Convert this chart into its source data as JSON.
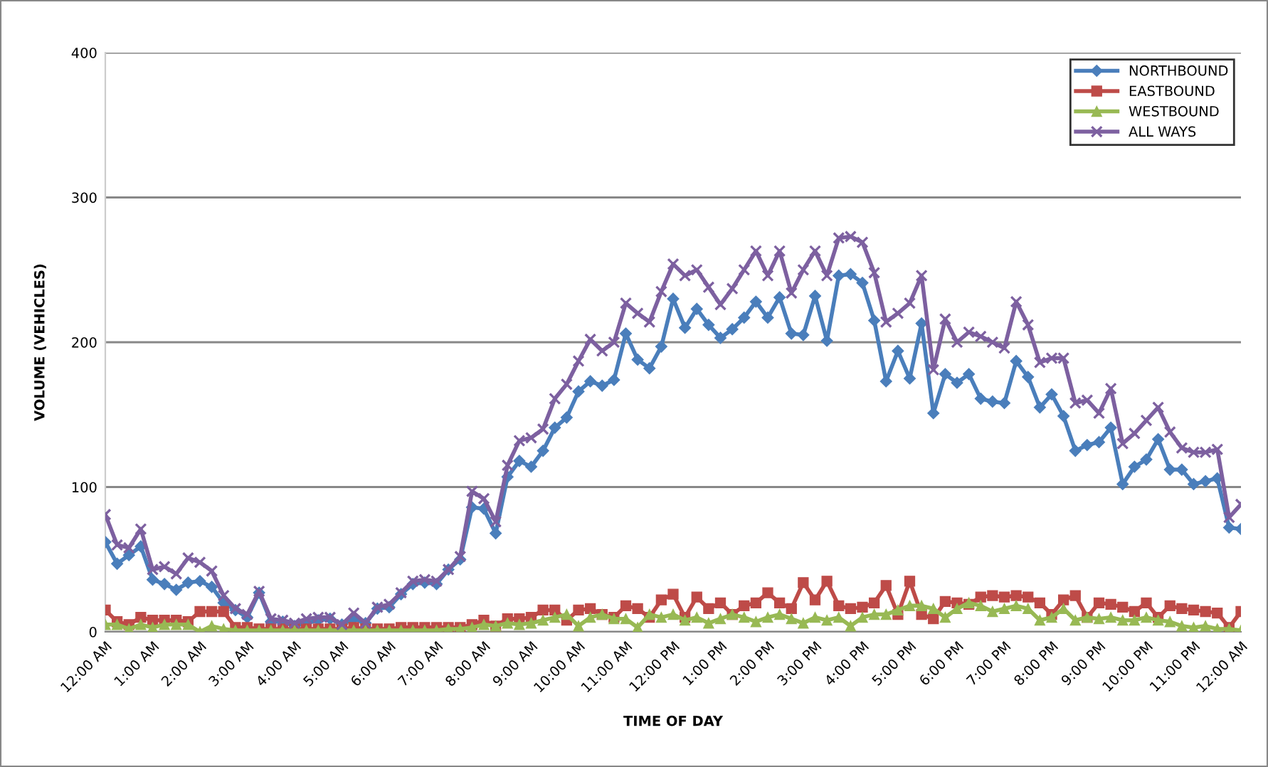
{
  "chart_data": {
    "type": "line",
    "xlabel": "TIME OF DAY",
    "ylabel": "VOLUME (VEHICLES)",
    "x": [
      0,
      0.25,
      0.5,
      0.75,
      1,
      1.25,
      1.5,
      1.75,
      2,
      2.25,
      2.5,
      2.75,
      3,
      3.25,
      3.5,
      3.75,
      4,
      4.25,
      4.5,
      4.75,
      5,
      5.25,
      5.5,
      5.75,
      6,
      6.25,
      6.5,
      6.75,
      7,
      7.25,
      7.5,
      7.75,
      8,
      8.25,
      8.5,
      8.75,
      9,
      9.25,
      9.5,
      9.75,
      10,
      10.25,
      10.5,
      10.75,
      11,
      11.25,
      11.5,
      11.75,
      12,
      12.25,
      12.5,
      12.75,
      13,
      13.25,
      13.5,
      13.75,
      14,
      14.25,
      14.5,
      14.75,
      15,
      15.25,
      15.5,
      15.75,
      16,
      16.25,
      16.5,
      16.75,
      17,
      17.25,
      17.5,
      17.75,
      18,
      18.25,
      18.5,
      18.75,
      19,
      19.25,
      19.5,
      19.75,
      20,
      20.25,
      20.5,
      20.75,
      21,
      21.25,
      21.5,
      21.75,
      22,
      22.25,
      22.5,
      22.75,
      23,
      23.25,
      23.5,
      23.75,
      24
    ],
    "series": [
      {
        "name": "NORTHBOUND",
        "color": "#4a7ebb",
        "marker": "diamond",
        "values": [
          62,
          47,
          53,
          59,
          36,
          33,
          29,
          34,
          35,
          31,
          20,
          15,
          10,
          27,
          7,
          7,
          4,
          6,
          8,
          9,
          5,
          9,
          6,
          16,
          17,
          26,
          33,
          34,
          33,
          43,
          50,
          86,
          85,
          68,
          107,
          118,
          114,
          125,
          141,
          148,
          166,
          173,
          170,
          174,
          206,
          188,
          182,
          197,
          230,
          210,
          223,
          212,
          203,
          209,
          217,
          228,
          217,
          231,
          206,
          205,
          232,
          201,
          246,
          247,
          241,
          215,
          173,
          194,
          175,
          213,
          151,
          178,
          172,
          178,
          161,
          159,
          158,
          187,
          176,
          155,
          164,
          149,
          125,
          129,
          131,
          141,
          102,
          114,
          119,
          133,
          112,
          112,
          102,
          104,
          106,
          72,
          71
        ]
      },
      {
        "name": "EASTBOUND",
        "color": "#be4b48",
        "marker": "square",
        "values": [
          15,
          7,
          5,
          10,
          8,
          8,
          8,
          7,
          14,
          14,
          14,
          3,
          3,
          2,
          2,
          2,
          2,
          2,
          2,
          2,
          2,
          3,
          2,
          2,
          2,
          3,
          3,
          3,
          3,
          3,
          3,
          5,
          8,
          4,
          9,
          9,
          10,
          15,
          15,
          8,
          15,
          16,
          12,
          10,
          18,
          16,
          10,
          22,
          26,
          10,
          24,
          16,
          20,
          12,
          18,
          20,
          27,
          20,
          16,
          34,
          22,
          35,
          18,
          16,
          17,
          20,
          32,
          12,
          35,
          12,
          9,
          21,
          20,
          19,
          24,
          25,
          24,
          25,
          24,
          20,
          12,
          22,
          25,
          10,
          20,
          19,
          17,
          14,
          20,
          10,
          18,
          16,
          15,
          14,
          13,
          3,
          14
        ]
      },
      {
        "name": "WESTBOUND",
        "color": "#98b954",
        "marker": "triangle",
        "values": [
          5,
          5,
          2,
          5,
          3,
          5,
          5,
          5,
          0,
          4,
          2,
          1,
          1,
          1,
          1,
          1,
          1,
          1,
          1,
          1,
          1,
          1,
          1,
          1,
          1,
          1,
          1,
          1,
          1,
          2,
          2,
          3,
          5,
          4,
          6,
          5,
          6,
          8,
          10,
          12,
          4,
          10,
          12,
          9,
          9,
          3,
          12,
          10,
          12,
          8,
          10,
          6,
          9,
          12,
          10,
          7,
          10,
          12,
          9,
          6,
          10,
          8,
          10,
          4,
          10,
          12,
          12,
          15,
          18,
          18,
          16,
          10,
          16,
          20,
          18,
          14,
          16,
          18,
          16,
          8,
          10,
          16,
          8,
          10,
          9,
          10,
          8,
          8,
          10,
          8,
          7,
          4,
          3,
          4,
          2,
          2,
          1
        ]
      },
      {
        "name": "ALL WAYS",
        "color": "#7d60a0",
        "marker": "cross",
        "values": [
          81,
          60,
          58,
          71,
          43,
          45,
          40,
          51,
          48,
          42,
          25,
          16,
          12,
          28,
          9,
          8,
          6,
          9,
          10,
          10,
          5,
          13,
          6,
          17,
          19,
          27,
          35,
          36,
          35,
          43,
          52,
          97,
          92,
          76,
          115,
          132,
          134,
          140,
          161,
          171,
          187,
          202,
          194,
          200,
          227,
          220,
          214,
          235,
          254,
          246,
          250,
          238,
          226,
          237,
          250,
          263,
          246,
          263,
          234,
          250,
          263,
          246,
          272,
          273,
          269,
          248,
          214,
          220,
          227,
          246,
          181,
          216,
          200,
          207,
          204,
          200,
          196,
          228,
          212,
          186,
          189,
          189,
          158,
          160,
          151,
          168,
          130,
          137,
          146,
          155,
          138,
          127,
          124,
          124,
          126,
          79,
          88
        ]
      }
    ],
    "xlim": [
      0,
      24
    ],
    "xticks": [
      {
        "value": 0,
        "label": "12:00 AM"
      },
      {
        "value": 1,
        "label": "1:00 AM"
      },
      {
        "value": 2,
        "label": "2:00 AM"
      },
      {
        "value": 3,
        "label": "3:00 AM"
      },
      {
        "value": 4,
        "label": "4:00 AM"
      },
      {
        "value": 5,
        "label": "5:00 AM"
      },
      {
        "value": 6,
        "label": "6:00 AM"
      },
      {
        "value": 7,
        "label": "7:00 AM"
      },
      {
        "value": 8,
        "label": "8:00 AM"
      },
      {
        "value": 9,
        "label": "9:00 AM"
      },
      {
        "value": 10,
        "label": "10:00 AM"
      },
      {
        "value": 11,
        "label": "11:00 AM"
      },
      {
        "value": 12,
        "label": "12:00 PM"
      },
      {
        "value": 13,
        "label": "1:00 PM"
      },
      {
        "value": 14,
        "label": "2:00 PM"
      },
      {
        "value": 15,
        "label": "3:00 PM"
      },
      {
        "value": 16,
        "label": "4:00 PM"
      },
      {
        "value": 17,
        "label": "5:00 PM"
      },
      {
        "value": 18,
        "label": "6:00 PM"
      },
      {
        "value": 19,
        "label": "7:00 PM"
      },
      {
        "value": 20,
        "label": "8:00 PM"
      },
      {
        "value": 21,
        "label": "9:00 PM"
      },
      {
        "value": 22,
        "label": "10:00 PM"
      },
      {
        "value": 23,
        "label": "11:00 PM"
      },
      {
        "value": 24,
        "label": "12:00 AM"
      }
    ],
    "ylim": [
      0,
      400
    ],
    "yticks": [
      0,
      100,
      200,
      300,
      400
    ],
    "grid": "y",
    "legend": "top right",
    "line_style": "solid"
  }
}
